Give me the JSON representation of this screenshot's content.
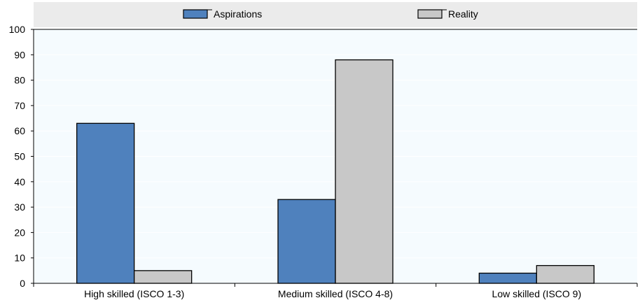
{
  "colors": {
    "aspirations": "#4f81bd",
    "reality": "#c8c8c8",
    "plot_background": "#f5fbfe",
    "legend_background": "#ebebeb",
    "gridline": "#ffffff"
  },
  "chart_data": {
    "type": "bar",
    "categories": [
      "High skilled (ISCO 1-3)",
      "Medium skilled (ISCO 4-8)",
      "Low skilled (ISCO 9)"
    ],
    "series": [
      {
        "name": "Aspirations",
        "values": [
          63,
          33,
          4
        ]
      },
      {
        "name": "Reality",
        "values": [
          5,
          88,
          7
        ]
      }
    ],
    "ylim": [
      0,
      100
    ],
    "yticks": [
      "0",
      "10",
      "20",
      "30",
      "40",
      "50",
      "60",
      "70",
      "80",
      "90",
      "100"
    ],
    "title": "",
    "xlabel": "",
    "ylabel": "",
    "legend": "top",
    "grid": true
  }
}
